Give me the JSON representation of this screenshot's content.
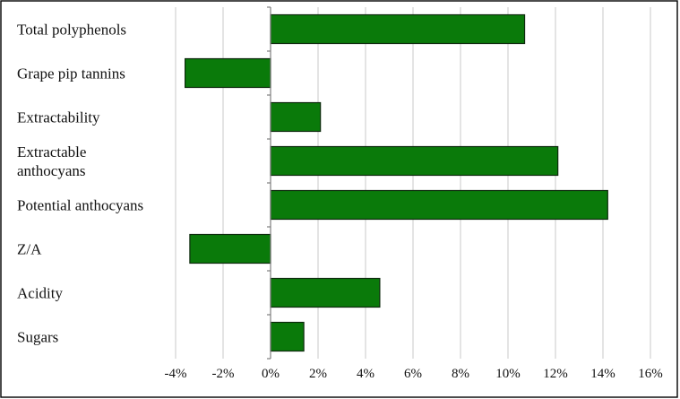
{
  "chart_data": {
    "type": "bar",
    "orientation": "horizontal",
    "title": "",
    "xlabel": "",
    "ylabel": "",
    "categories": [
      "Total polyphenols",
      "Grape pip tannins",
      "Extractability",
      "Extractable anthocyans",
      "Potential anthocyans",
      "Z/A",
      "Acidity",
      "Sugars"
    ],
    "category_lines": [
      [
        "Total polyphenols"
      ],
      [
        "Grape pip tannins"
      ],
      [
        "Extractability"
      ],
      [
        "Extractable",
        "anthocyans"
      ],
      [
        "Potential anthocyans"
      ],
      [
        "Z/A"
      ],
      [
        "Acidity"
      ],
      [
        "Sugars"
      ]
    ],
    "values": [
      10.7,
      -3.6,
      2.1,
      12.1,
      14.2,
      -3.4,
      4.6,
      1.4
    ],
    "xlim": [
      -4,
      16
    ],
    "ticks": [
      -4,
      -2,
      0,
      2,
      4,
      6,
      8,
      10,
      12,
      14,
      16
    ],
    "tick_labels": [
      "-4%",
      "-2%",
      "0%",
      "2%",
      "4%",
      "6%",
      "8%",
      "10%",
      "12%",
      "14%",
      "16%"
    ],
    "grid": true,
    "legend": "none",
    "bar_color": "#0a7a0a",
    "bar_edge_color": "#0d2a0d"
  }
}
